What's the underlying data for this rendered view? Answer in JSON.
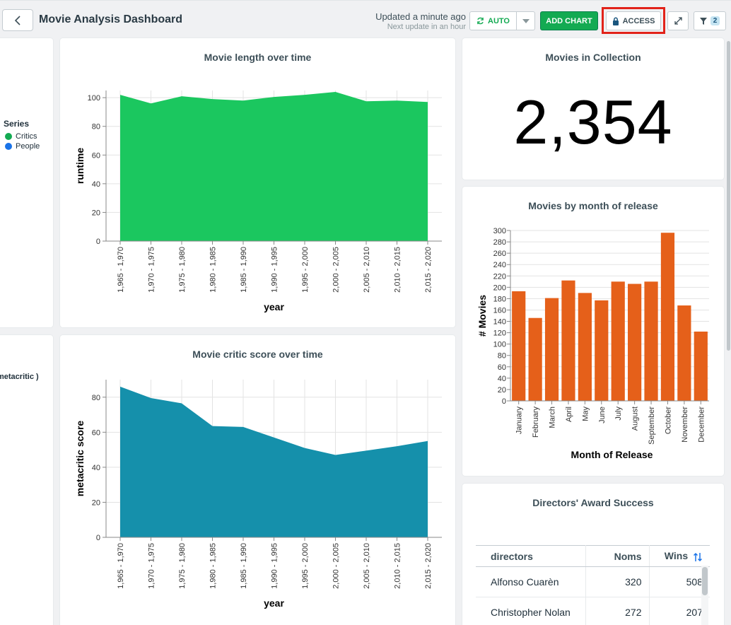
{
  "header": {
    "title": "Movie Analysis Dashboard",
    "updated": "Updated a minute ago",
    "next_update": "Next update in an hour",
    "auto_label": "AUTO",
    "add_chart_label": "ADD CHART",
    "access_label": "ACCESS",
    "filter_count": "2"
  },
  "legend": {
    "title": "Series",
    "items": [
      {
        "label": "Critics",
        "color": "#13aa52"
      },
      {
        "label": "People",
        "color": "#1a73e8"
      }
    ]
  },
  "left_partial_label": "metacritic )",
  "colors": {
    "runtime_area": "#1bc75f",
    "metacritic_area": "#1590ab",
    "month_bar": "#e5601a",
    "primary_button": "#13aa52",
    "highlight": "#e2231a"
  },
  "movies_in_collection": {
    "title": "Movies in Collection",
    "value": "2,354"
  },
  "directors_table": {
    "title": "Directors' Award Success",
    "headers": [
      "directors",
      "Noms",
      "Wins"
    ],
    "rows": [
      [
        "Alfonso Cuarèn",
        "320",
        "508"
      ],
      [
        "Christopher Nolan",
        "272",
        "207"
      ]
    ]
  },
  "chart_data": [
    {
      "type": "area",
      "title": "Movie length over time",
      "xlabel": "year",
      "ylabel": "runtime",
      "categories": [
        "1,965 - 1,970",
        "1,970 - 1,975",
        "1,975 - 1,980",
        "1,980 - 1,985",
        "1,985 - 1,990",
        "1,990 - 1,995",
        "1,995 - 2,000",
        "2,000 - 2,005",
        "2,005 - 2,010",
        "2,010 - 2,015",
        "2,015 - 2,020"
      ],
      "values": [
        102,
        96,
        101,
        99,
        98,
        100.5,
        102,
        104,
        97.5,
        98,
        97
      ],
      "ylim": [
        0,
        105
      ],
      "yticks": [
        0,
        20,
        40,
        60,
        80,
        100
      ]
    },
    {
      "type": "area",
      "title": "Movie critic score over time",
      "xlabel": "year",
      "ylabel": "metacritic score",
      "categories": [
        "1,965 - 1,970",
        "1,970 - 1,975",
        "1,975 - 1,980",
        "1,980 - 1,985",
        "1,985 - 1,990",
        "1,990 - 1,995",
        "1,995 - 2,000",
        "2,000 - 2,005",
        "2,005 - 2,010",
        "2,010 - 2,015",
        "2,015 - 2,020"
      ],
      "values": [
        86,
        79.5,
        76.5,
        63.5,
        63,
        57,
        51,
        47,
        49.5,
        52,
        55
      ],
      "ylim": [
        0,
        90
      ],
      "yticks": [
        0,
        20,
        40,
        60,
        80
      ]
    },
    {
      "type": "bar",
      "title": "Movies by month of release",
      "xlabel": "Month of Release",
      "ylabel": "# Movies",
      "categories": [
        "January",
        "February",
        "March",
        "April",
        "May",
        "June",
        "July",
        "August",
        "September",
        "October",
        "November",
        "December"
      ],
      "values": [
        193,
        146,
        181,
        212,
        190,
        177,
        210,
        206,
        210,
        296,
        168,
        122
      ],
      "ylim": [
        0,
        300
      ],
      "yticks": [
        0,
        20,
        40,
        60,
        80,
        100,
        120,
        140,
        160,
        180,
        200,
        220,
        240,
        260,
        280,
        300
      ]
    }
  ]
}
